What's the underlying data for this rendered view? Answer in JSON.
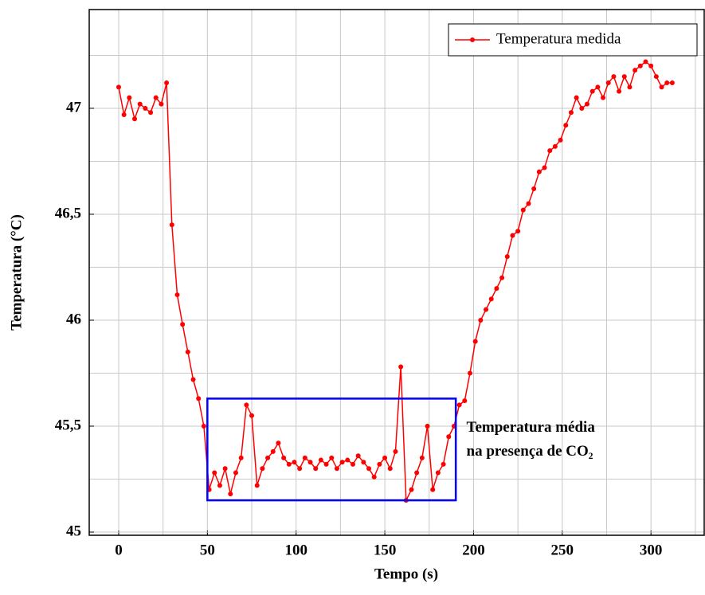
{
  "chart_data": {
    "type": "line",
    "xlabel": "Tempo (s)",
    "ylabel": "Temperatura (°C)",
    "x": [
      0,
      3,
      6,
      9,
      12,
      15,
      18,
      21,
      24,
      27,
      30,
      33,
      36,
      39,
      42,
      45,
      48,
      51,
      54,
      57,
      60,
      63,
      66,
      69,
      72,
      75,
      78,
      81,
      84,
      87,
      90,
      93,
      96,
      99,
      102,
      105,
      108,
      111,
      114,
      117,
      120,
      123,
      126,
      129,
      132,
      135,
      138,
      141,
      144,
      147,
      150,
      153,
      156,
      159,
      162,
      165,
      168,
      171,
      174,
      177,
      180,
      183,
      186,
      189,
      192,
      195,
      198,
      201,
      204,
      207,
      210,
      213,
      216,
      219,
      222,
      225,
      228,
      231,
      234,
      237,
      240,
      243,
      246,
      249,
      252,
      255,
      258,
      261,
      264,
      267,
      270,
      273,
      276,
      279,
      282,
      285,
      288,
      291,
      294,
      297,
      300,
      303,
      306,
      309,
      312
    ],
    "series": [
      {
        "name": "Temperatura medida",
        "color": "#ff0000",
        "values": [
          47.1,
          46.97,
          47.05,
          46.95,
          47.02,
          47.0,
          46.98,
          47.05,
          47.02,
          47.12,
          46.45,
          46.12,
          45.98,
          45.85,
          45.72,
          45.63,
          45.5,
          45.2,
          45.28,
          45.22,
          45.3,
          45.18,
          45.28,
          45.35,
          45.6,
          45.55,
          45.22,
          45.3,
          45.35,
          45.38,
          45.42,
          45.35,
          45.32,
          45.33,
          45.3,
          45.35,
          45.33,
          45.3,
          45.34,
          45.32,
          45.35,
          45.3,
          45.33,
          45.34,
          45.32,
          45.36,
          45.33,
          45.3,
          45.26,
          45.32,
          45.35,
          45.3,
          45.38,
          45.78,
          45.15,
          45.2,
          45.28,
          45.35,
          45.5,
          45.2,
          45.28,
          45.32,
          45.45,
          45.5,
          45.6,
          45.62,
          45.75,
          45.9,
          46.0,
          46.05,
          46.1,
          46.15,
          46.2,
          46.3,
          46.4,
          46.42,
          46.52,
          46.55,
          46.62,
          46.7,
          46.72,
          46.8,
          46.82,
          46.85,
          46.92,
          46.98,
          47.05,
          47.0,
          47.02,
          47.08,
          47.1,
          47.05,
          47.12,
          47.15,
          47.08,
          47.15,
          47.1,
          47.18,
          47.2,
          47.22,
          47.2,
          47.15,
          47.1,
          47.12,
          47.12
        ]
      }
    ],
    "xlim": [
      -16.6,
      330
    ],
    "ylim": [
      44.985,
      47.466
    ],
    "xticks": [
      0,
      50,
      100,
      150,
      200,
      250,
      300
    ],
    "yticks": [
      45,
      {
        "value": 45.5,
        "label": "45,5"
      },
      46,
      {
        "value": 46.5,
        "label": "46,5"
      },
      47
    ],
    "x_minor_grid": [
      25,
      75,
      125,
      175,
      225,
      275,
      325
    ],
    "y_minor_grid": [
      45.25,
      45.75,
      46.25,
      46.75,
      47.25
    ],
    "grid": true,
    "legend": "upper right",
    "highlight_box": {
      "x": [
        50,
        190
      ],
      "y": [
        45.15,
        45.63
      ],
      "color": "#0000ff"
    },
    "annotation": {
      "lines": [
        "Temperatura média",
        "na presença de CO₂"
      ],
      "x": 196,
      "y": 45.49,
      "color": "#0000ff"
    }
  }
}
